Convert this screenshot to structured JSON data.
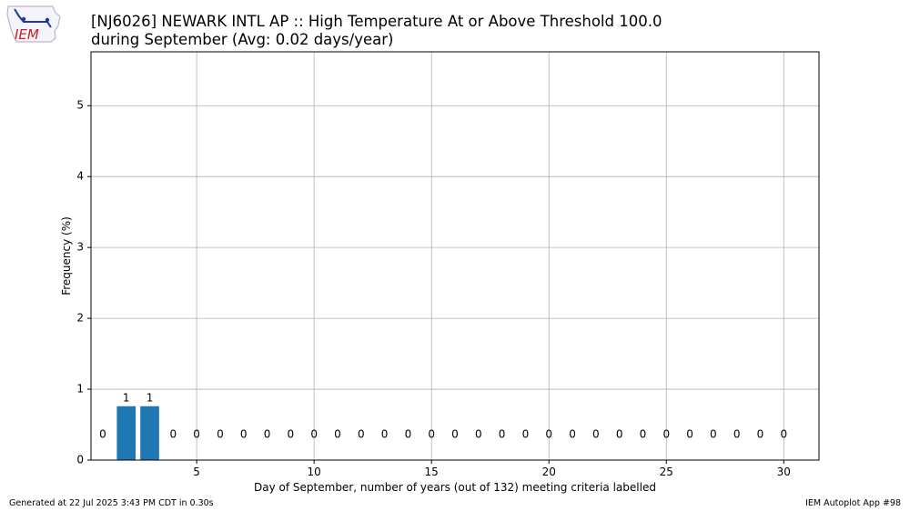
{
  "header": {
    "title_line1": "[NJ6026] NEWARK INTL AP :: High Temperature At or Above Threshold 100.0",
    "title_line2": "during September (Avg: 0.02 days/year)",
    "logo_text": "IEM"
  },
  "footer": {
    "generated": "Generated at 22 Jul 2025 3:43 PM CDT in 0.30s",
    "app": "IEM Autoplot App #98"
  },
  "chart_data": {
    "type": "bar",
    "xlabel": "Day of September, number of years (out of 132) meeting criteria labelled",
    "ylabel": "Frequency (%)",
    "xlim": [
      0.5,
      31.5
    ],
    "ylim": [
      0,
      5.76
    ],
    "xticks": [
      5,
      10,
      15,
      20,
      25,
      30
    ],
    "yticks": [
      0,
      1,
      2,
      3,
      4,
      5
    ],
    "grid": true,
    "bar_color": "#1f77b4",
    "categories": [
      1,
      2,
      3,
      4,
      5,
      6,
      7,
      8,
      9,
      10,
      11,
      12,
      13,
      14,
      15,
      16,
      17,
      18,
      19,
      20,
      21,
      22,
      23,
      24,
      25,
      26,
      27,
      28,
      29,
      30
    ],
    "values": [
      0,
      0.76,
      0.76,
      0,
      0,
      0,
      0,
      0,
      0,
      0,
      0,
      0,
      0,
      0,
      0,
      0,
      0,
      0,
      0,
      0,
      0,
      0,
      0,
      0,
      0,
      0,
      0,
      0,
      0,
      0
    ],
    "labels": [
      "0",
      "1",
      "1",
      "0",
      "0",
      "0",
      "0",
      "0",
      "0",
      "0",
      "0",
      "0",
      "0",
      "0",
      "0",
      "0",
      "0",
      "0",
      "0",
      "0",
      "0",
      "0",
      "0",
      "0",
      "0",
      "0",
      "0",
      "0",
      "0",
      "0"
    ]
  }
}
